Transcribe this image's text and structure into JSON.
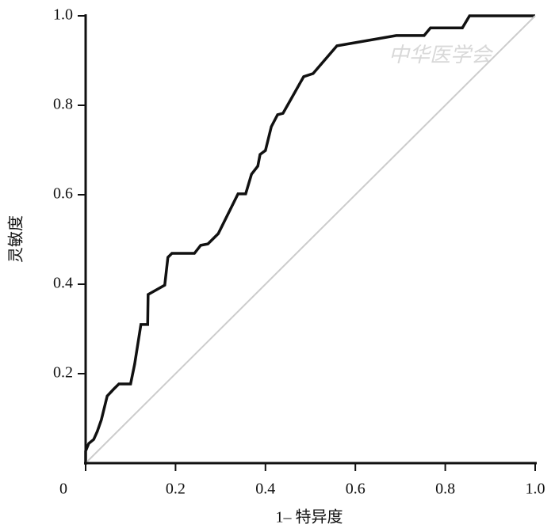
{
  "chart_data": {
    "type": "line",
    "x_label": "1– 特异度",
    "y_label": "灵敏度",
    "annotation": "中华医学会",
    "xlim": [
      0,
      1
    ],
    "ylim": [
      0,
      1
    ],
    "xticks": [
      0,
      0.2,
      0.4,
      0.6,
      0.8,
      {
        "value": 1,
        "label": "1.0"
      }
    ],
    "yticks": [
      0.2,
      0.4,
      0.6,
      0.8,
      {
        "value": 1,
        "label": "1.0"
      }
    ],
    "grid": false,
    "series": [
      {
        "color": "#111111",
        "x": [
          0,
          0,
          0.007,
          0.018,
          0.026,
          0.035,
          0.048,
          0.062,
          0.074,
          0.1,
          0.109,
          0.123,
          0.138,
          0.139,
          0.176,
          0.183,
          0.192,
          0.242,
          0.256,
          0.272,
          0.295,
          0.339,
          0.356,
          0.369,
          0.383,
          0.388,
          0.4,
          0.413,
          0.427,
          0.439,
          0.485,
          0.506,
          0.559,
          0.691,
          0.753,
          0.767,
          0.838,
          0.854,
          1
        ],
        "values": [
          0,
          0.027,
          0.044,
          0.053,
          0.071,
          0.097,
          0.15,
          0.165,
          0.177,
          0.177,
          0.221,
          0.31,
          0.31,
          0.377,
          0.398,
          0.46,
          0.469,
          0.469,
          0.487,
          0.49,
          0.513,
          0.602,
          0.602,
          0.646,
          0.664,
          0.69,
          0.699,
          0.752,
          0.779,
          0.782,
          0.864,
          0.871,
          0.933,
          0.956,
          0.956,
          0.973,
          0.973,
          1,
          1
        ]
      },
      {
        "color": "#cccccc",
        "x": [
          0,
          1
        ],
        "values": [
          0,
          1
        ]
      }
    ]
  }
}
